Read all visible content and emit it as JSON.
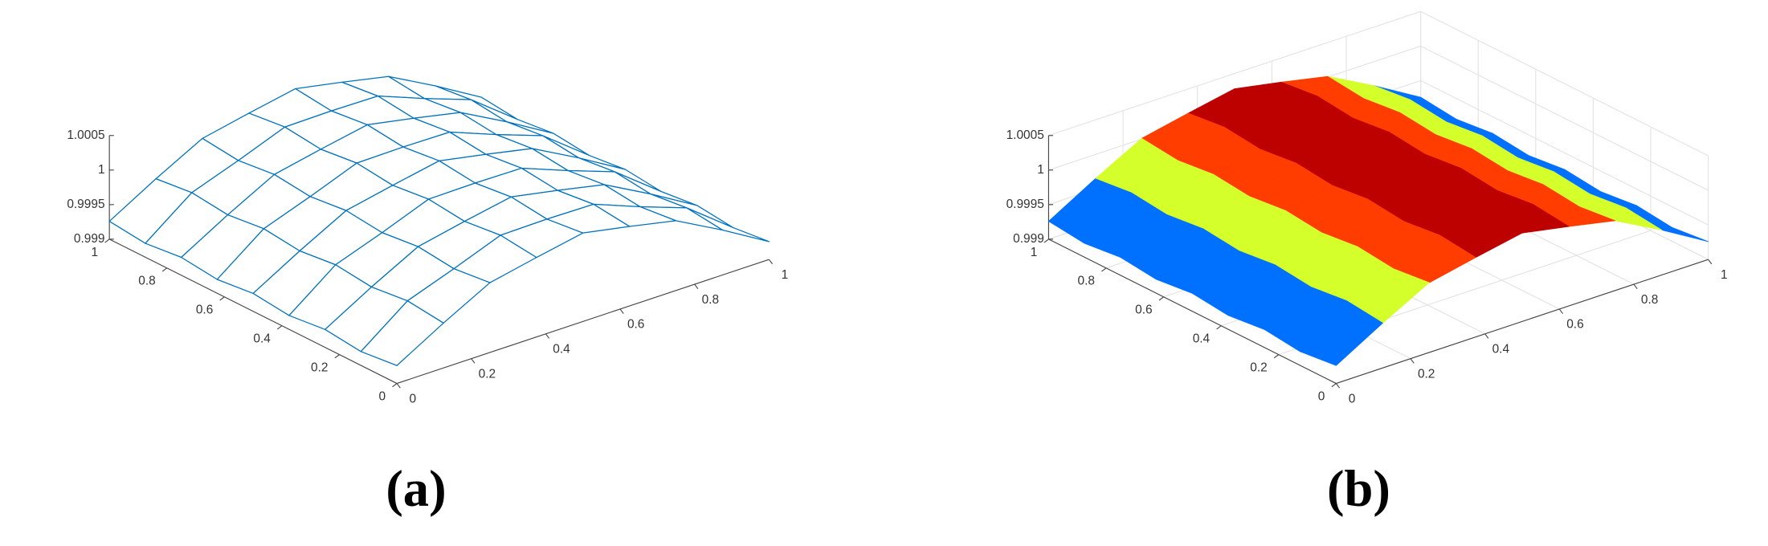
{
  "chart_data": [
    {
      "type": "mesh",
      "label": "(a)",
      "color": "#0072bd",
      "x": [
        0,
        0.125,
        0.25,
        0.375,
        0.5,
        0.625,
        0.75,
        0.875,
        1
      ],
      "y": [
        0,
        0.125,
        0.25,
        0.375,
        0.5,
        0.625,
        0.75,
        0.875,
        1
      ],
      "z": [
        [
          0.99926,
          0.99965,
          1.00001,
          1.00015,
          1.00028,
          1.00015,
          1.00001,
          0.99965,
          0.99926
        ],
        [
          0.9992,
          0.99971,
          0.99995,
          1.00021,
          1.00022,
          1.00021,
          0.99995,
          0.99971,
          0.9992
        ],
        [
          0.99926,
          0.99965,
          1.00001,
          1.00015,
          1.00028,
          1.00015,
          1.00001,
          0.99965,
          0.99926
        ],
        [
          0.9992,
          0.99971,
          0.99995,
          1.00021,
          1.00022,
          1.00021,
          0.99995,
          0.99971,
          0.9992
        ],
        [
          0.99926,
          0.99965,
          1.00001,
          1.00015,
          1.00028,
          1.00015,
          1.00001,
          0.99965,
          0.99926
        ],
        [
          0.9992,
          0.99971,
          0.99995,
          1.00021,
          1.00022,
          1.00021,
          0.99995,
          0.99971,
          0.9992
        ],
        [
          0.99926,
          0.99965,
          1.00001,
          1.00015,
          1.00028,
          1.00015,
          1.00001,
          0.99965,
          0.99926
        ],
        [
          0.9992,
          0.99971,
          0.99995,
          1.00021,
          1.00022,
          1.00021,
          0.99995,
          0.99971,
          0.9992
        ],
        [
          0.99926,
          0.99965,
          1.00001,
          1.00015,
          1.00028,
          1.00015,
          1.00001,
          0.99965,
          0.99926
        ]
      ],
      "xlim": [
        0,
        1
      ],
      "ylim": [
        0,
        1
      ],
      "zlim": [
        0.999,
        1.0005
      ],
      "xticks": [
        0,
        0.2,
        0.4,
        0.6,
        0.8,
        1
      ],
      "yticks": [
        0,
        0.2,
        0.4,
        0.6,
        0.8,
        1
      ],
      "zticks": [
        0.999,
        0.9995,
        1,
        1.0005
      ],
      "grid": false
    },
    {
      "type": "surface",
      "label": "(b)",
      "colormap": "jet",
      "x": [
        0,
        0.125,
        0.25,
        0.375,
        0.5,
        0.625,
        0.75,
        0.875,
        1
      ],
      "y": [
        0,
        0.125,
        0.25,
        0.375,
        0.5,
        0.625,
        0.75,
        0.875,
        1
      ],
      "z": [
        [
          0.99926,
          0.99965,
          1.00001,
          1.00015,
          1.00028,
          1.00015,
          1.00001,
          0.99965,
          0.99926
        ],
        [
          0.9992,
          0.99971,
          0.99995,
          1.00021,
          1.00022,
          1.00021,
          0.99995,
          0.99971,
          0.9992
        ],
        [
          0.99926,
          0.99965,
          1.00001,
          1.00015,
          1.00028,
          1.00015,
          1.00001,
          0.99965,
          0.99926
        ],
        [
          0.9992,
          0.99971,
          0.99995,
          1.00021,
          1.00022,
          1.00021,
          0.99995,
          0.99971,
          0.9992
        ],
        [
          0.99926,
          0.99965,
          1.00001,
          1.00015,
          1.00028,
          1.00015,
          1.00001,
          0.99965,
          0.99926
        ],
        [
          0.9992,
          0.99971,
          0.99995,
          1.00021,
          1.00022,
          1.00021,
          0.99995,
          0.99971,
          0.9992
        ],
        [
          0.99926,
          0.99965,
          1.00001,
          1.00015,
          1.00028,
          1.00015,
          1.00001,
          0.99965,
          0.99926
        ],
        [
          0.9992,
          0.99971,
          0.99995,
          1.00021,
          1.00022,
          1.00021,
          0.99995,
          0.99971,
          0.9992
        ],
        [
          0.99926,
          0.99965,
          1.00001,
          1.00015,
          1.00028,
          1.00015,
          1.00001,
          0.99965,
          0.99926
        ]
      ],
      "xlim": [
        0,
        1
      ],
      "ylim": [
        0,
        1
      ],
      "zlim": [
        0.999,
        1.0005
      ],
      "xticks": [
        0,
        0.2,
        0.4,
        0.6,
        0.8,
        1
      ],
      "yticks": [
        0,
        0.2,
        0.4,
        0.6,
        0.8,
        1
      ],
      "zticks": [
        0.999,
        0.9995,
        1,
        1.0005
      ],
      "grid": true
    }
  ]
}
